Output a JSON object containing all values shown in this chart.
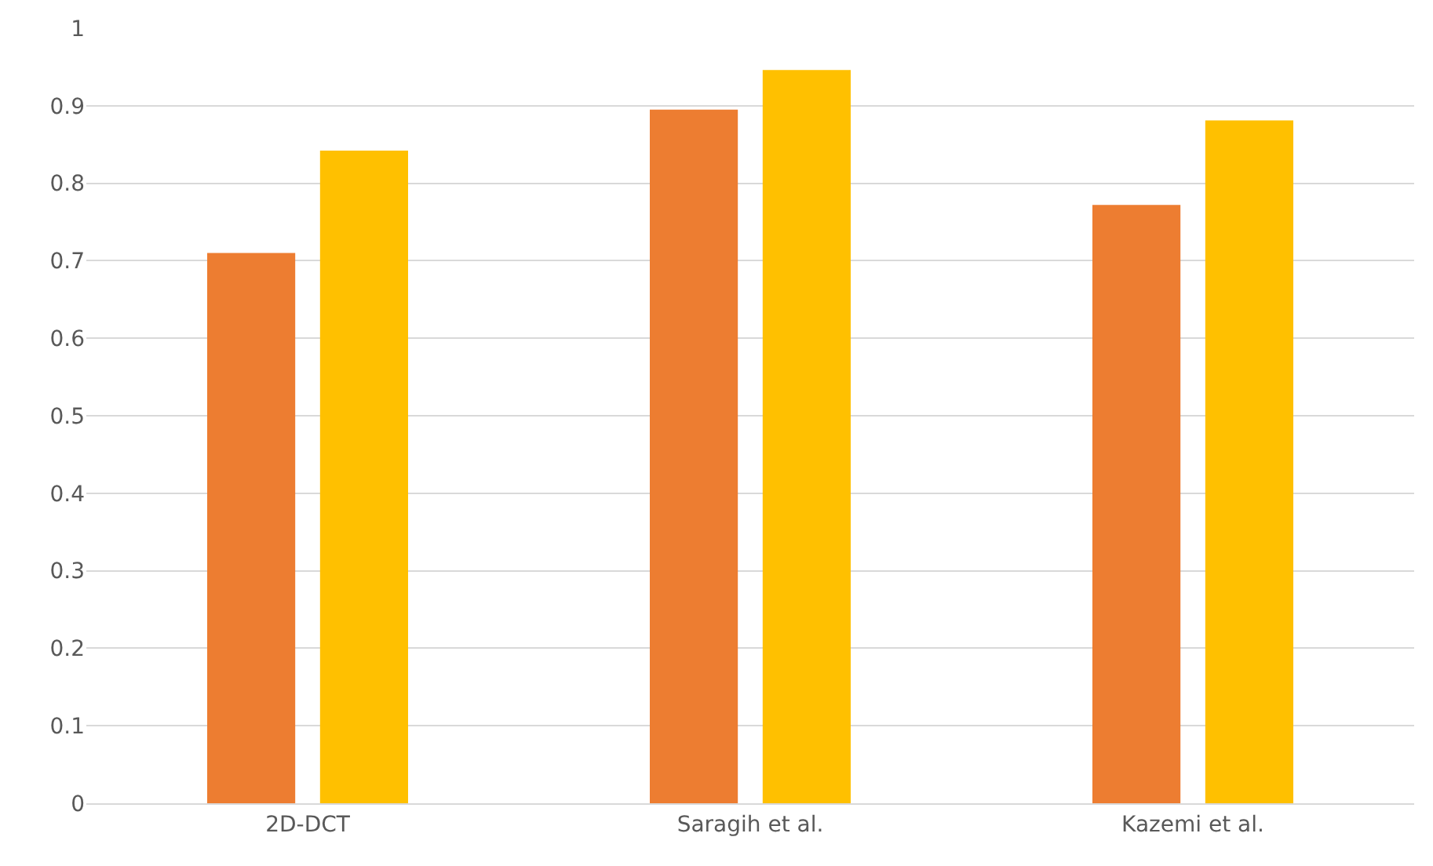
{
  "chart_data": {
    "type": "bar",
    "categories": [
      "2D-DCT",
      "Saragih et al.",
      "Kazemi et al."
    ],
    "series": [
      {
        "color": "#ed7d31",
        "values": [
          0.71,
          0.895,
          0.772
        ]
      },
      {
        "color": "#ffc000",
        "values": [
          0.842,
          0.946,
          0.881
        ]
      }
    ],
    "ylim": [
      0,
      1
    ],
    "yticks": [
      0,
      0.1,
      0.2,
      0.3,
      0.4,
      0.5,
      0.6,
      0.7,
      0.8,
      0.9,
      1
    ],
    "grid": "y",
    "legend": false
  }
}
